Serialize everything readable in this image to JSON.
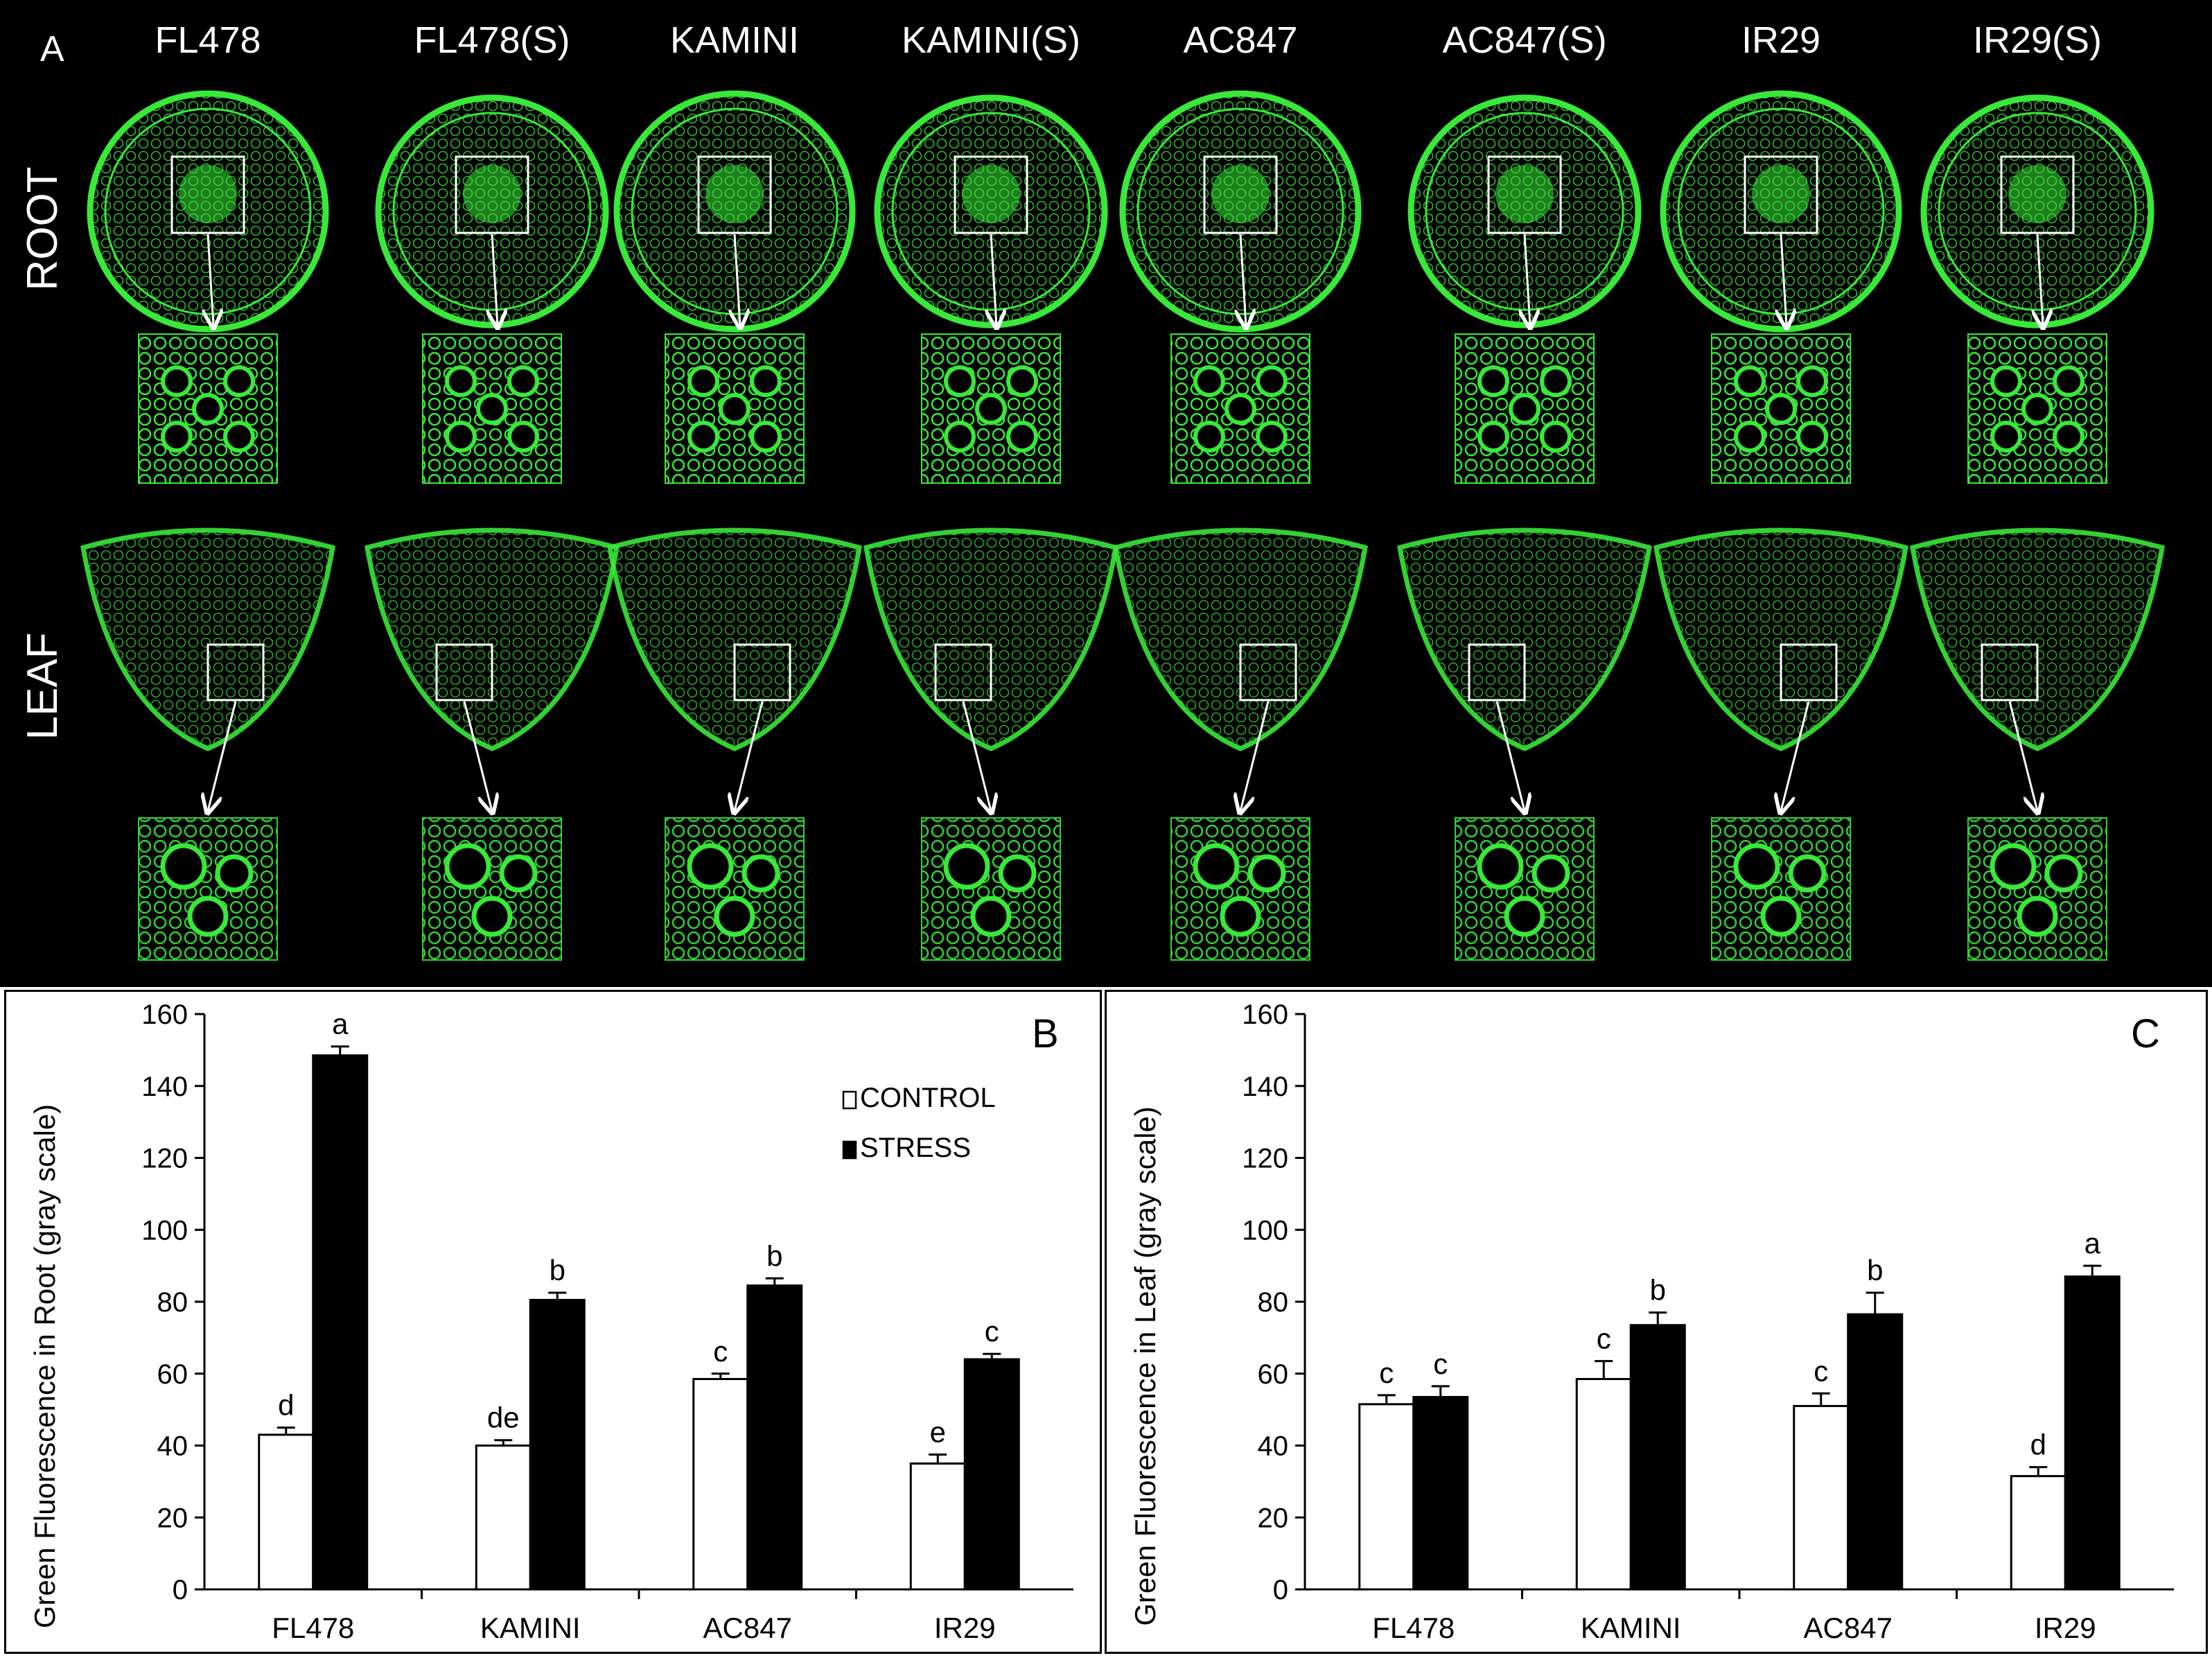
{
  "panel_a": {
    "letter": "A",
    "columns": [
      "FL478",
      "FL478(S)",
      "KAMINI",
      "KAMINI(S)",
      "AC847",
      "AC847(S)",
      "IR29",
      "IR29(S)"
    ],
    "row_labels": [
      "ROOT",
      "LEAF"
    ],
    "colors": {
      "background": "#000000",
      "fluorescence": "#39e839",
      "box": "#ffffff"
    }
  },
  "panel_b": {
    "letter": "B",
    "legend": [
      "CONTROL",
      "STRESS"
    ]
  },
  "panel_c": {
    "letter": "C"
  },
  "chart_data": [
    {
      "type": "bar",
      "title": "",
      "categories": [
        "FL478",
        "KAMINI",
        "AC847",
        "IR29"
      ],
      "series": [
        {
          "name": "CONTROL",
          "values": [
            43,
            40,
            58.5,
            35
          ],
          "errors": [
            2,
            1.5,
            1.5,
            2.5
          ],
          "letters": [
            "d",
            "de",
            "c",
            "e"
          ],
          "color": "#ffffff"
        },
        {
          "name": "STRESS",
          "values": [
            148.5,
            80.5,
            84.5,
            64
          ],
          "errors": [
            2.5,
            2,
            2,
            1.5
          ],
          "letters": [
            "a",
            "b",
            "b",
            "c"
          ],
          "color": "#000000"
        }
      ],
      "xlabel": "",
      "ylabel": "Green Fluorescence in Root (gray scale)",
      "ylim": [
        0,
        160
      ],
      "yticks": [
        0,
        20,
        40,
        60,
        80,
        100,
        120,
        140,
        160
      ],
      "grid": false,
      "legend_position": "top-right"
    },
    {
      "type": "bar",
      "title": "",
      "categories": [
        "FL478",
        "KAMINI",
        "AC847",
        "IR29"
      ],
      "series": [
        {
          "name": "CONTROL",
          "values": [
            51.5,
            58.5,
            51,
            31.5
          ],
          "errors": [
            2.5,
            5,
            3.5,
            2.5
          ],
          "letters": [
            "c",
            "c",
            "c",
            "d"
          ],
          "color": "#ffffff"
        },
        {
          "name": "STRESS",
          "values": [
            53.5,
            73.5,
            76.5,
            87
          ],
          "errors": [
            3,
            3.5,
            6,
            3
          ],
          "letters": [
            "c",
            "b",
            "b",
            "a"
          ],
          "color": "#000000"
        }
      ],
      "xlabel": "",
      "ylabel": "Green Fluorescence in Leaf (gray scale)",
      "ylim": [
        0,
        160
      ],
      "yticks": [
        0,
        20,
        40,
        60,
        80,
        100,
        120,
        140,
        160
      ],
      "grid": false,
      "legend_position": "none"
    }
  ]
}
